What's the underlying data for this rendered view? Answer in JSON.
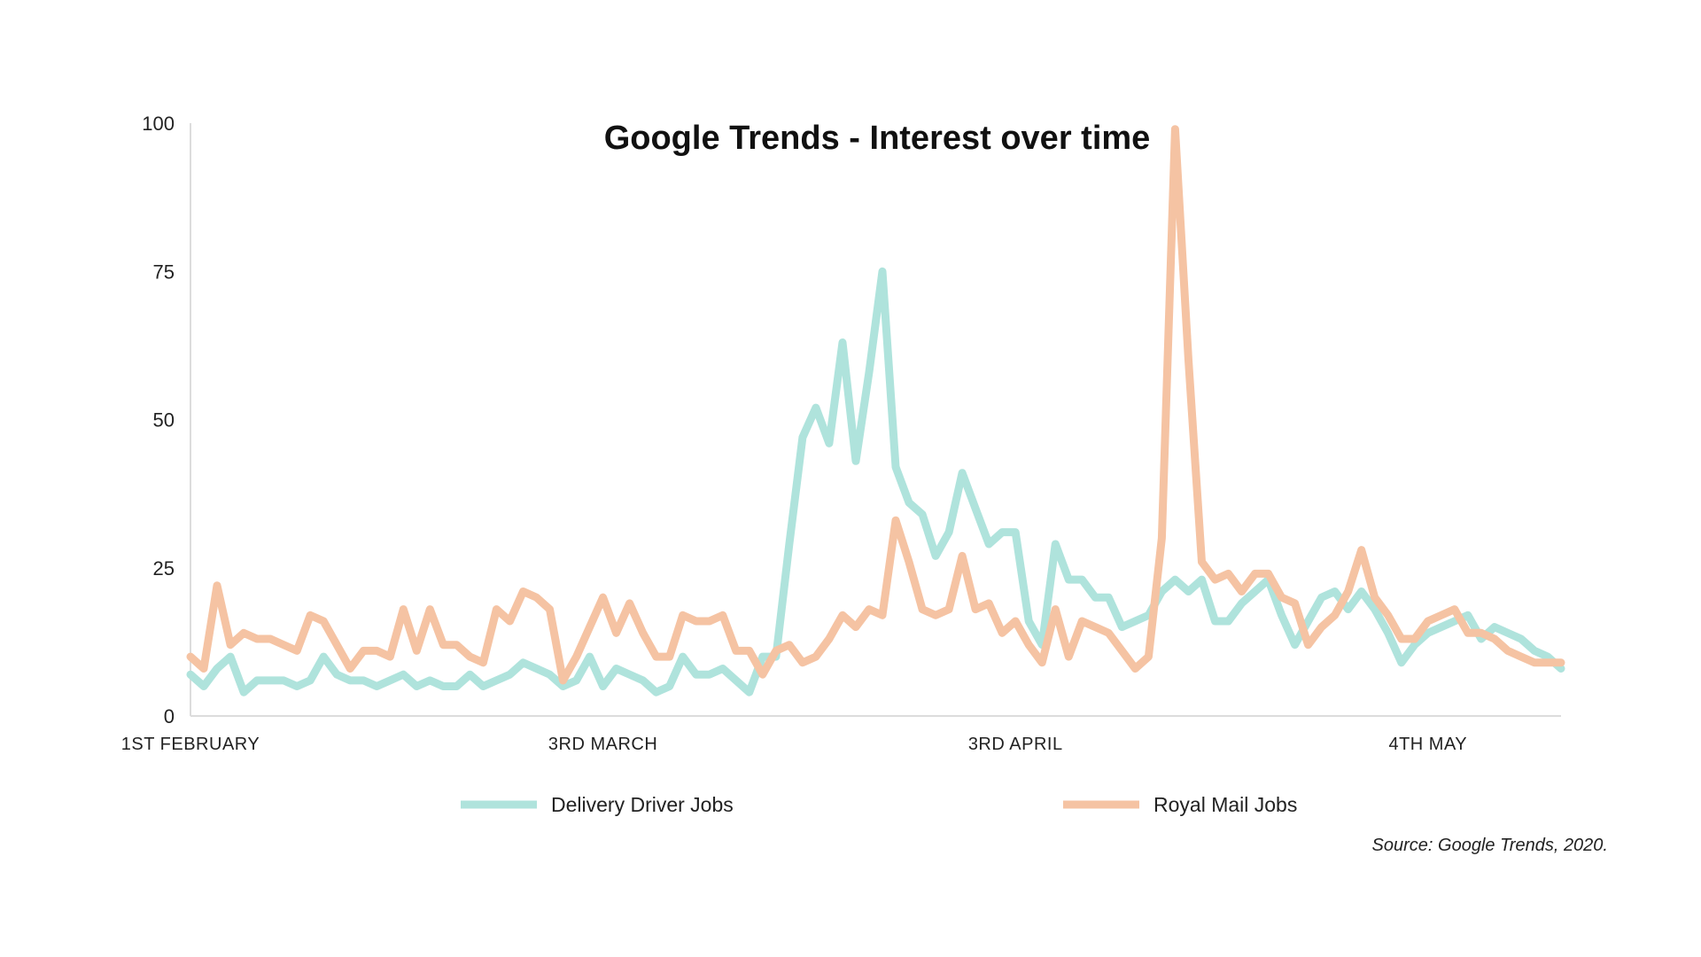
{
  "chart_data": {
    "type": "line",
    "title": "Google Trends - Interest over time",
    "xlabel": "",
    "ylabel": "",
    "ylim": [
      0,
      100
    ],
    "yticks": [
      0,
      25,
      50,
      75,
      100
    ],
    "x": [
      "2020-02-01",
      "2020-02-02",
      "2020-02-03",
      "2020-02-04",
      "2020-02-05",
      "2020-02-06",
      "2020-02-07",
      "2020-02-08",
      "2020-02-09",
      "2020-02-10",
      "2020-02-11",
      "2020-02-12",
      "2020-02-13",
      "2020-02-14",
      "2020-02-15",
      "2020-02-16",
      "2020-02-17",
      "2020-02-18",
      "2020-02-19",
      "2020-02-20",
      "2020-02-21",
      "2020-02-22",
      "2020-02-23",
      "2020-02-24",
      "2020-02-25",
      "2020-02-26",
      "2020-02-27",
      "2020-02-28",
      "2020-02-29",
      "2020-03-01",
      "2020-03-02",
      "2020-03-03",
      "2020-03-04",
      "2020-03-05",
      "2020-03-06",
      "2020-03-07",
      "2020-03-08",
      "2020-03-09",
      "2020-03-10",
      "2020-03-11",
      "2020-03-12",
      "2020-03-13",
      "2020-03-14",
      "2020-03-15",
      "2020-03-16",
      "2020-03-17",
      "2020-03-18",
      "2020-03-19",
      "2020-03-20",
      "2020-03-21",
      "2020-03-22",
      "2020-03-23",
      "2020-03-24",
      "2020-03-25",
      "2020-03-26",
      "2020-03-27",
      "2020-03-28",
      "2020-03-29",
      "2020-03-30",
      "2020-03-31",
      "2020-04-01",
      "2020-04-02",
      "2020-04-03",
      "2020-04-04",
      "2020-04-05",
      "2020-04-06",
      "2020-04-07",
      "2020-04-08",
      "2020-04-09",
      "2020-04-10",
      "2020-04-11",
      "2020-04-12",
      "2020-04-13",
      "2020-04-14",
      "2020-04-15",
      "2020-04-16",
      "2020-04-17",
      "2020-04-18",
      "2020-04-19",
      "2020-04-20",
      "2020-04-21",
      "2020-04-22",
      "2020-04-23",
      "2020-04-24",
      "2020-04-25",
      "2020-04-26",
      "2020-04-27",
      "2020-04-28",
      "2020-04-29",
      "2020-04-30",
      "2020-05-01",
      "2020-05-02",
      "2020-05-03",
      "2020-05-04",
      "2020-05-05",
      "2020-05-06",
      "2020-05-07",
      "2020-05-08",
      "2020-05-09",
      "2020-05-10",
      "2020-05-11",
      "2020-05-12",
      "2020-05-13",
      "2020-05-14"
    ],
    "xticks": [
      {
        "x": "2020-02-01",
        "label": "1ST FEBRUARY"
      },
      {
        "x": "2020-03-03",
        "label": "3RD MARCH"
      },
      {
        "x": "2020-04-03",
        "label": "3RD APRIL"
      },
      {
        "x": "2020-05-04",
        "label": "4TH MAY"
      }
    ],
    "series": [
      {
        "name": "Delivery Driver Jobs",
        "color": "#afe3dc",
        "values": [
          7,
          5,
          8,
          10,
          4,
          6,
          6,
          6,
          5,
          6,
          10,
          7,
          6,
          6,
          5,
          6,
          7,
          5,
          6,
          5,
          5,
          7,
          5,
          6,
          7,
          9,
          8,
          7,
          5,
          6,
          10,
          5,
          8,
          7,
          6,
          4,
          5,
          10,
          7,
          7,
          8,
          6,
          4,
          10,
          10,
          29,
          47,
          52,
          46,
          63,
          43,
          58,
          75,
          42,
          36,
          34,
          27,
          31,
          41,
          35,
          29,
          31,
          31,
          16,
          12,
          29,
          23,
          23,
          20,
          20,
          15,
          16,
          17,
          21,
          23,
          21,
          23,
          16,
          16,
          19,
          21,
          23,
          17,
          12,
          16,
          20,
          21,
          18,
          21,
          18,
          14,
          9,
          12,
          14,
          15,
          16,
          17,
          13,
          15,
          14,
          13,
          11,
          10,
          8
        ]
      },
      {
        "name": "Royal Mail Jobs",
        "color": "#f5c3a3",
        "values": [
          10,
          8,
          22,
          12,
          14,
          13,
          13,
          12,
          11,
          17,
          16,
          12,
          8,
          11,
          11,
          10,
          18,
          11,
          18,
          12,
          12,
          10,
          9,
          18,
          16,
          21,
          20,
          18,
          6,
          10,
          15,
          20,
          14,
          19,
          14,
          10,
          10,
          17,
          16,
          16,
          17,
          11,
          11,
          7,
          11,
          12,
          9,
          10,
          13,
          17,
          15,
          18,
          17,
          33,
          26,
          18,
          17,
          18,
          27,
          18,
          19,
          14,
          16,
          12,
          9,
          18,
          10,
          16,
          15,
          14,
          11,
          8,
          10,
          30,
          99,
          60,
          26,
          23,
          24,
          21,
          24,
          24,
          20,
          19,
          12,
          15,
          17,
          21,
          28,
          20,
          17,
          13,
          13,
          16,
          17,
          18,
          14,
          14,
          13,
          11,
          10,
          9,
          9,
          9
        ]
      }
    ],
    "legend": {
      "placement": "bottom",
      "items": [
        "Delivery Driver Jobs",
        "Royal Mail Jobs"
      ]
    },
    "grid": false,
    "source": "Source: Google Trends, 2020."
  }
}
